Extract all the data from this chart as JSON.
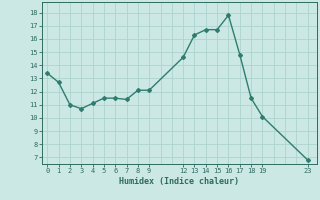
{
  "x": [
    0,
    1,
    2,
    3,
    4,
    5,
    6,
    7,
    8,
    9,
    12,
    13,
    14,
    15,
    16,
    17,
    18,
    19,
    23
  ],
  "y": [
    13.4,
    12.7,
    11.0,
    10.7,
    11.1,
    11.5,
    11.5,
    11.4,
    12.1,
    12.1,
    14.6,
    16.3,
    16.7,
    16.7,
    17.8,
    14.8,
    11.5,
    10.1,
    6.8
  ],
  "line_color": "#2e7d6e",
  "marker": "D",
  "marker_size": 2,
  "bg_color": "#cce8e4",
  "grid_color": "#aed4cf",
  "tick_color": "#2e6b60",
  "xlabel": "Humidex (Indice chaleur)",
  "xtick_positions": [
    0,
    1,
    2,
    3,
    4,
    5,
    6,
    7,
    8,
    9,
    12,
    13,
    14,
    15,
    16,
    17,
    18,
    19,
    23
  ],
  "xtick_labels": [
    "0",
    "1",
    "2",
    "3",
    "4",
    "5",
    "6",
    "7",
    "8",
    "9",
    "12",
    "13",
    "14",
    "15",
    "16",
    "17",
    "18",
    "19",
    "23"
  ],
  "ytick_positions": [
    7,
    8,
    9,
    10,
    11,
    12,
    13,
    14,
    15,
    16,
    17,
    18
  ],
  "ytick_labels": [
    "7",
    "8",
    "9",
    "10",
    "11",
    "12",
    "13",
    "14",
    "15",
    "16",
    "17",
    "18"
  ],
  "ylim": [
    6.5,
    18.8
  ],
  "xlim": [
    -0.5,
    23.8
  ]
}
